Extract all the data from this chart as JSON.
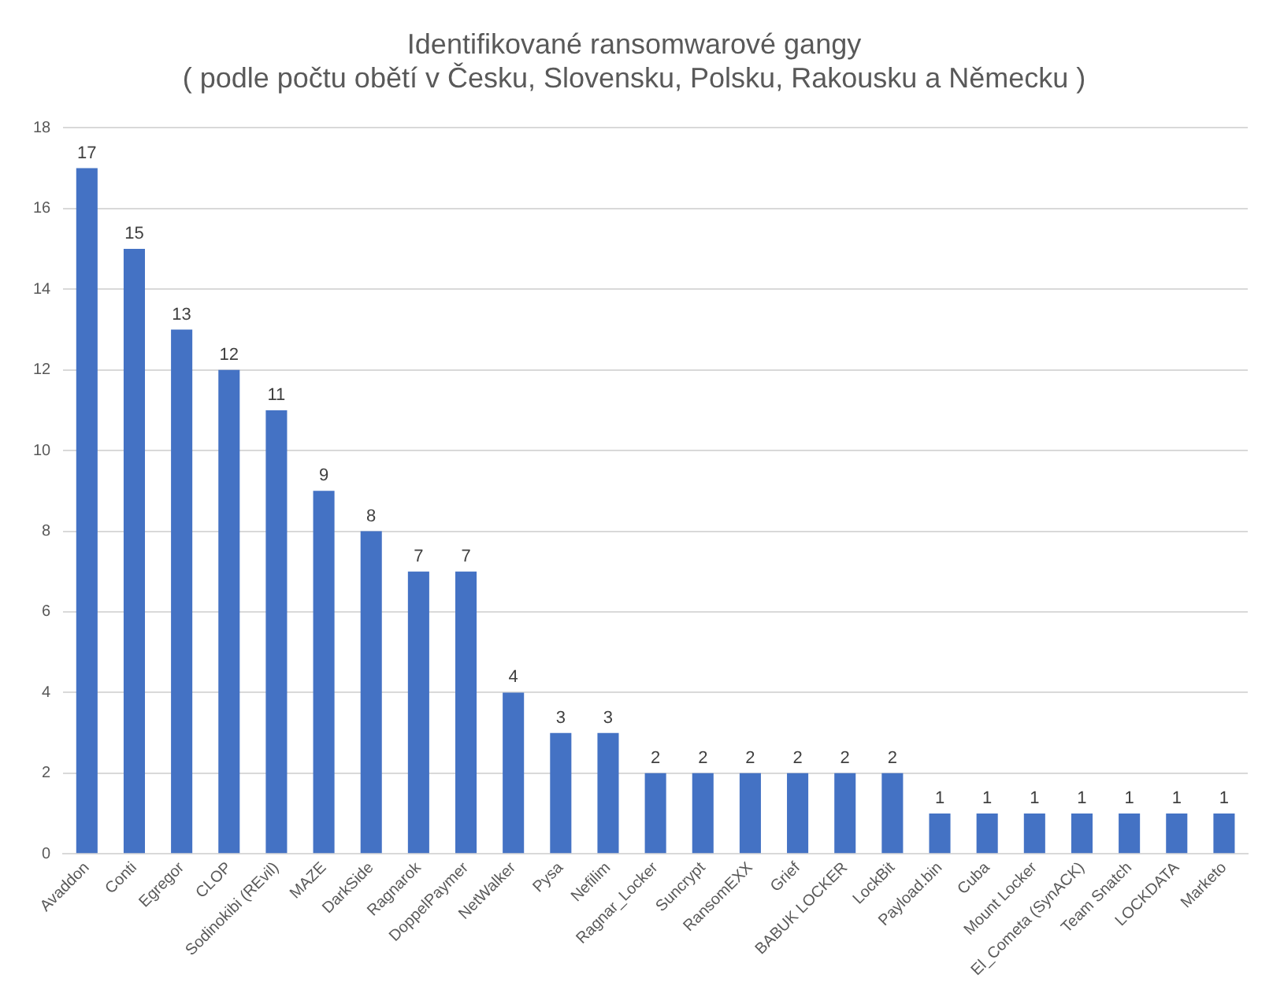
{
  "chart_data": {
    "type": "bar",
    "title": [
      "Identifikované ransomwarové gangy",
      "( podle počtu obětí v Česku, Slovensku, Polsku, Rakousku a Německu )"
    ],
    "categories": [
      "Avaddon",
      "Conti",
      "Egregor",
      "CLOP",
      "Sodinokibi (REvil)",
      "MAZE",
      "DarkSide",
      "Ragnarok",
      "DoppelPaymer",
      "NetWalker",
      "Pysa",
      "Nefilim",
      "Ragnar_Locker",
      "Suncrypt",
      "RansomEXX",
      "Grief",
      "BABUK LOCKER",
      "LockBit",
      "Payload.bin",
      "Cuba",
      "Mount Locker",
      "El_Cometa (SynACK)",
      "Team Snatch",
      "LOCKDATA",
      "Marketo"
    ],
    "values": [
      17,
      15,
      13,
      12,
      11,
      9,
      8,
      7,
      7,
      4,
      3,
      3,
      2,
      2,
      2,
      2,
      2,
      2,
      1,
      1,
      1,
      1,
      1,
      1,
      1
    ],
    "color": "#4472c4",
    "ylim": [
      0,
      18
    ],
    "yticks": [
      0,
      2,
      4,
      6,
      8,
      10,
      12,
      14,
      16,
      18
    ],
    "grid": "y",
    "legend": false,
    "data_labels": true
  }
}
